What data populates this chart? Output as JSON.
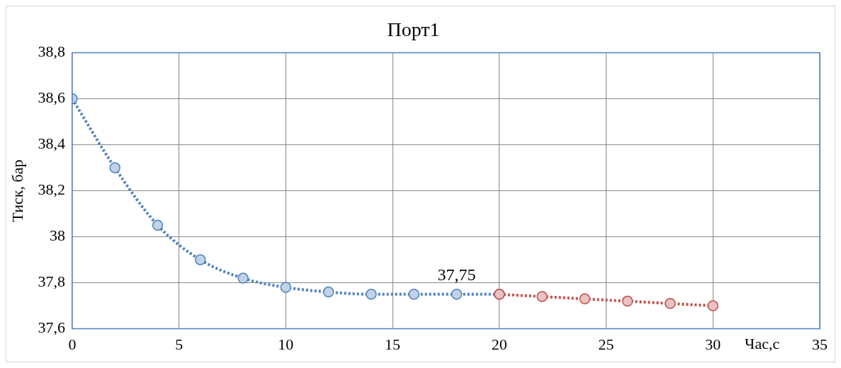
{
  "chart_data": {
    "type": "line",
    "title": "Порт1",
    "xlabel": "Час,с",
    "ylabel": "Тиск, бар",
    "series": [
      {
        "color": "#4f81bd",
        "x": [
          0,
          2,
          4,
          6,
          8,
          10,
          12,
          14,
          16,
          18,
          20
        ],
        "values": [
          38.6,
          38.3,
          38.05,
          37.9,
          37.82,
          37.78,
          37.76,
          37.75,
          37.75,
          37.75,
          37.75
        ]
      },
      {
        "color": "#c0504d",
        "x": [
          20,
          22,
          24,
          26,
          28,
          30
        ],
        "values": [
          37.75,
          37.74,
          37.73,
          37.72,
          37.71,
          37.7
        ]
      }
    ],
    "xlim": [
      0,
      35
    ],
    "xticks": [
      0,
      5,
      10,
      15,
      20,
      25,
      30,
      35
    ],
    "ylim": [
      37.6,
      38.8
    ],
    "yticks": [
      {
        "value": 37.6,
        "label": "37,6"
      },
      {
        "value": 37.8,
        "label": "37,8"
      },
      {
        "value": 38,
        "label": "38"
      },
      {
        "value": 38.2,
        "label": "38,2"
      },
      {
        "value": 38.4,
        "label": "38,4"
      },
      {
        "value": 38.6,
        "label": "38,6"
      },
      {
        "value": 38.8,
        "label": "38,8"
      }
    ],
    "annotations": [
      {
        "text": "37,75",
        "x": 18,
        "y": 37.75
      }
    ],
    "grid": true,
    "legend": false,
    "marker": "circle",
    "line_style": "dotted"
  }
}
